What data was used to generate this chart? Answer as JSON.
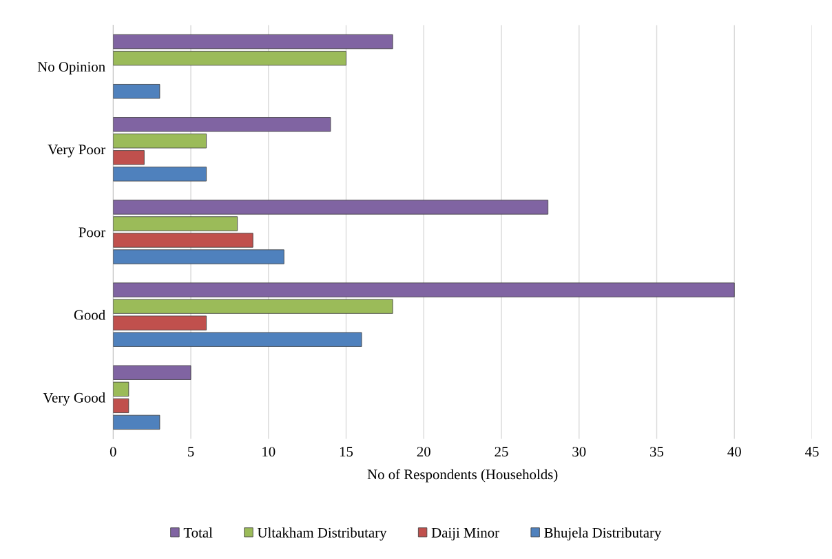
{
  "chart_data": {
    "type": "bar",
    "orientation": "horizontal",
    "xlabel": "No of Respondents (Households)",
    "categories": [
      "No Opinion",
      "Very Poor",
      "Poor",
      "Good",
      "Very Good"
    ],
    "series": [
      {
        "name": "Total",
        "color": "#8064a2",
        "values": [
          18,
          14,
          28,
          40,
          5
        ]
      },
      {
        "name": "Ultakham Distributary",
        "color": "#9bbb59",
        "values": [
          15,
          6,
          8,
          18,
          1
        ]
      },
      {
        "name": "Daiji Minor",
        "color": "#c0504d",
        "values": [
          null,
          2,
          9,
          6,
          1
        ]
      },
      {
        "name": "Bhujela Distributary",
        "color": "#4f81bd",
        "values": [
          3,
          6,
          11,
          16,
          3
        ]
      }
    ],
    "xlim": [
      0,
      45
    ],
    "xticks": [
      0,
      5,
      10,
      15,
      20,
      25,
      30,
      35,
      40,
      45
    ],
    "grid": "x",
    "legend": "bottom"
  }
}
